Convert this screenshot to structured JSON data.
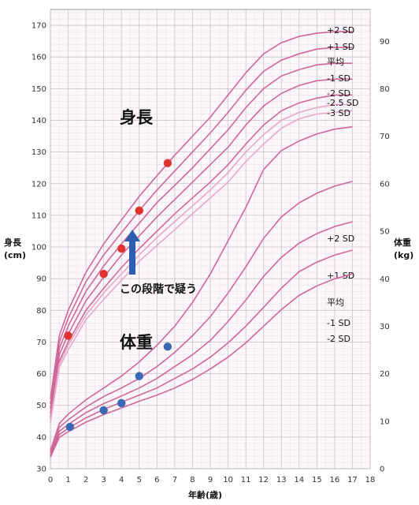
{
  "chart_data": {
    "type": "line",
    "labels": {
      "height_title": "身長",
      "weight_title": "体重",
      "left_axis_title": "身長",
      "left_axis_unit": "(cm)",
      "right_axis_title": "体重",
      "right_axis_unit": "(kg)",
      "xlabel": "年齢(歳)",
      "note": "この段階で疑う"
    },
    "x_ticks": [
      0,
      1,
      2,
      3,
      4,
      5,
      6,
      7,
      8,
      9,
      10,
      11,
      12,
      13,
      14,
      15,
      16,
      17,
      18
    ],
    "height_axis": {
      "range": [
        30,
        175
      ],
      "ticks": [
        30,
        40,
        50,
        60,
        70,
        80,
        90,
        100,
        110,
        120,
        130,
        140,
        150,
        160,
        170
      ]
    },
    "weight_axis": {
      "range": [
        0,
        96.7
      ],
      "ticks": [
        0,
        10,
        20,
        30,
        40,
        50,
        60,
        70,
        80,
        90
      ]
    },
    "height_series": [
      {
        "name": "+2 SD",
        "color": "#d0679a",
        "points": [
          [
            0,
            52
          ],
          [
            0.5,
            72
          ],
          [
            1,
            80
          ],
          [
            2,
            92
          ],
          [
            3,
            101
          ],
          [
            4,
            108.5
          ],
          [
            5,
            116
          ],
          [
            6,
            122.5
          ],
          [
            7,
            129
          ],
          [
            8,
            135
          ],
          [
            9,
            141
          ],
          [
            10,
            148
          ],
          [
            11,
            155
          ],
          [
            12,
            161
          ],
          [
            13,
            164.5
          ],
          [
            14,
            166.5
          ],
          [
            15,
            167.5
          ],
          [
            16,
            168
          ],
          [
            17,
            168
          ]
        ]
      },
      {
        "name": "+1 SD",
        "color": "#d0679a",
        "points": [
          [
            0,
            50.5
          ],
          [
            0.5,
            70
          ],
          [
            1,
            77.5
          ],
          [
            2,
            89
          ],
          [
            3,
            97.5
          ],
          [
            4,
            104.5
          ],
          [
            5,
            111.5
          ],
          [
            6,
            118
          ],
          [
            7,
            124
          ],
          [
            8,
            130
          ],
          [
            9,
            136
          ],
          [
            10,
            142.5
          ],
          [
            11,
            149.5
          ],
          [
            12,
            155.5
          ],
          [
            13,
            159
          ],
          [
            14,
            161
          ],
          [
            15,
            162.5
          ],
          [
            16,
            163
          ],
          [
            17,
            163
          ]
        ]
      },
      {
        "name": "平均",
        "color": "#d0679a",
        "points": [
          [
            0,
            49
          ],
          [
            0.5,
            68
          ],
          [
            1,
            75
          ],
          [
            2,
            86
          ],
          [
            3,
            94
          ],
          [
            4,
            101
          ],
          [
            5,
            107.5
          ],
          [
            6,
            114
          ],
          [
            7,
            119.5
          ],
          [
            8,
            125
          ],
          [
            9,
            131
          ],
          [
            10,
            137
          ],
          [
            11,
            144
          ],
          [
            12,
            150
          ],
          [
            13,
            154
          ],
          [
            14,
            156
          ],
          [
            15,
            157.5
          ],
          [
            16,
            158
          ],
          [
            17,
            158
          ]
        ]
      },
      {
        "name": "-1 SD",
        "color": "#d0679a",
        "points": [
          [
            0,
            47.5
          ],
          [
            0.5,
            66
          ],
          [
            1,
            72.5
          ],
          [
            2,
            83
          ],
          [
            3,
            90.5
          ],
          [
            4,
            97.5
          ],
          [
            5,
            103.5
          ],
          [
            6,
            109.5
          ],
          [
            7,
            115
          ],
          [
            8,
            120.5
          ],
          [
            9,
            126
          ],
          [
            10,
            131.5
          ],
          [
            11,
            138.5
          ],
          [
            12,
            144.5
          ],
          [
            13,
            148.5
          ],
          [
            14,
            151
          ],
          [
            15,
            152.5
          ],
          [
            16,
            153
          ],
          [
            17,
            153
          ]
        ]
      },
      {
        "name": "-2 SD",
        "color": "#d0679a",
        "points": [
          [
            0,
            46
          ],
          [
            0.5,
            64
          ],
          [
            1,
            70
          ],
          [
            2,
            80
          ],
          [
            3,
            87
          ],
          [
            4,
            93.5
          ],
          [
            5,
            99.5
          ],
          [
            6,
            105
          ],
          [
            7,
            110.5
          ],
          [
            8,
            115.5
          ],
          [
            9,
            120.5
          ],
          [
            10,
            126
          ],
          [
            11,
            132.5
          ],
          [
            12,
            138.5
          ],
          [
            13,
            143
          ],
          [
            14,
            145.5
          ],
          [
            15,
            147
          ],
          [
            16,
            148
          ],
          [
            17,
            148
          ]
        ]
      },
      {
        "name": "-2.5 SD",
        "color": "#e7a9c6",
        "points": [
          [
            0,
            45
          ],
          [
            0.5,
            63
          ],
          [
            1,
            69
          ],
          [
            2,
            78.5
          ],
          [
            3,
            85.5
          ],
          [
            4,
            91.5
          ],
          [
            5,
            97.5
          ],
          [
            6,
            103
          ],
          [
            7,
            108
          ],
          [
            8,
            113
          ],
          [
            9,
            118
          ],
          [
            10,
            123.5
          ],
          [
            11,
            130
          ],
          [
            12,
            135.5
          ],
          [
            13,
            140
          ],
          [
            14,
            142.5
          ],
          [
            15,
            144
          ],
          [
            16,
            145
          ],
          [
            17,
            145
          ]
        ]
      },
      {
        "name": "-3 SD",
        "color": "#e7a9c6",
        "points": [
          [
            0,
            44.5
          ],
          [
            0.5,
            62
          ],
          [
            1,
            67.5
          ],
          [
            2,
            77
          ],
          [
            3,
            83.5
          ],
          [
            4,
            89.5
          ],
          [
            5,
            95.5
          ],
          [
            6,
            100.5
          ],
          [
            7,
            105.5
          ],
          [
            8,
            110.5
          ],
          [
            9,
            115.5
          ],
          [
            10,
            120.5
          ],
          [
            11,
            127
          ],
          [
            12,
            132.5
          ],
          [
            13,
            137.5
          ],
          [
            14,
            140.5
          ],
          [
            15,
            142
          ],
          [
            16,
            142.5
          ],
          [
            17,
            143
          ]
        ]
      }
    ],
    "weight_series": [
      {
        "name": "+2 SD",
        "color": "#d0679a",
        "points": [
          [
            0,
            3.8
          ],
          [
            0.5,
            9.5
          ],
          [
            1,
            11.5
          ],
          [
            2,
            14.5
          ],
          [
            3,
            17
          ],
          [
            4,
            19.5
          ],
          [
            5,
            22.5
          ],
          [
            6,
            26
          ],
          [
            7,
            30
          ],
          [
            8,
            35
          ],
          [
            9,
            41
          ],
          [
            10,
            48
          ],
          [
            11,
            55
          ],
          [
            12,
            63
          ],
          [
            13,
            67
          ],
          [
            14,
            69
          ],
          [
            15,
            70.5
          ],
          [
            16,
            71.5
          ],
          [
            17,
            72
          ]
        ]
      },
      {
        "name": "+1 SD",
        "color": "#d0679a",
        "points": [
          [
            0,
            3.4
          ],
          [
            0.5,
            8.7
          ],
          [
            1,
            10.3
          ],
          [
            2,
            13
          ],
          [
            3,
            15.2
          ],
          [
            4,
            17
          ],
          [
            5,
            19
          ],
          [
            6,
            21.5
          ],
          [
            7,
            24.5
          ],
          [
            8,
            28
          ],
          [
            9,
            32
          ],
          [
            10,
            37
          ],
          [
            11,
            42.5
          ],
          [
            12,
            48.5
          ],
          [
            13,
            53
          ],
          [
            14,
            56
          ],
          [
            15,
            58
          ],
          [
            16,
            59.5
          ],
          [
            17,
            60.5
          ]
        ]
      },
      {
        "name": "平均",
        "color": "#d0679a",
        "points": [
          [
            0,
            3
          ],
          [
            0.5,
            7.9
          ],
          [
            1,
            9.3
          ],
          [
            2,
            11.8
          ],
          [
            3,
            13.7
          ],
          [
            4,
            15.3
          ],
          [
            5,
            17
          ],
          [
            6,
            19
          ],
          [
            7,
            21.5
          ],
          [
            8,
            24
          ],
          [
            9,
            27
          ],
          [
            10,
            31
          ],
          [
            11,
            35.5
          ],
          [
            12,
            40.5
          ],
          [
            13,
            44.5
          ],
          [
            14,
            47.5
          ],
          [
            15,
            49.5
          ],
          [
            16,
            51
          ],
          [
            17,
            52
          ]
        ]
      },
      {
        "name": "-1 SD",
        "color": "#d0679a",
        "points": [
          [
            0,
            2.7
          ],
          [
            0.5,
            7.2
          ],
          [
            1,
            8.5
          ],
          [
            2,
            10.7
          ],
          [
            3,
            12.5
          ],
          [
            4,
            14
          ],
          [
            5,
            15.5
          ],
          [
            6,
            17
          ],
          [
            7,
            19
          ],
          [
            8,
            21
          ],
          [
            9,
            23.5
          ],
          [
            10,
            26.5
          ],
          [
            11,
            30
          ],
          [
            12,
            34
          ],
          [
            13,
            38
          ],
          [
            14,
            41.5
          ],
          [
            15,
            43.5
          ],
          [
            16,
            45
          ],
          [
            17,
            46
          ]
        ]
      },
      {
        "name": "-2 SD",
        "color": "#d0679a",
        "points": [
          [
            0,
            2.4
          ],
          [
            0.5,
            6.6
          ],
          [
            1,
            7.8
          ],
          [
            2,
            9.8
          ],
          [
            3,
            11.4
          ],
          [
            4,
            12.8
          ],
          [
            5,
            14.2
          ],
          [
            6,
            15.5
          ],
          [
            7,
            17
          ],
          [
            8,
            18.8
          ],
          [
            9,
            21
          ],
          [
            10,
            23.5
          ],
          [
            11,
            26.5
          ],
          [
            12,
            30
          ],
          [
            13,
            33.5
          ],
          [
            14,
            36.5
          ],
          [
            15,
            38.5
          ],
          [
            16,
            40
          ],
          [
            17,
            41
          ]
        ]
      }
    ],
    "height_points": [
      [
        1,
        72
      ],
      [
        3,
        91.5
      ],
      [
        4,
        99.5
      ],
      [
        5,
        111.5
      ],
      [
        6.6,
        126.5
      ]
    ],
    "weight_points": [
      [
        1.1,
        8.8
      ],
      [
        3,
        12.3
      ],
      [
        4,
        13.8
      ],
      [
        5,
        19.5
      ],
      [
        6.6,
        25.7
      ]
    ],
    "height_point_color": "#e0322f",
    "weight_point_color": "#3b68b2",
    "arrow_color": "#2c5fb0",
    "grid": true
  }
}
